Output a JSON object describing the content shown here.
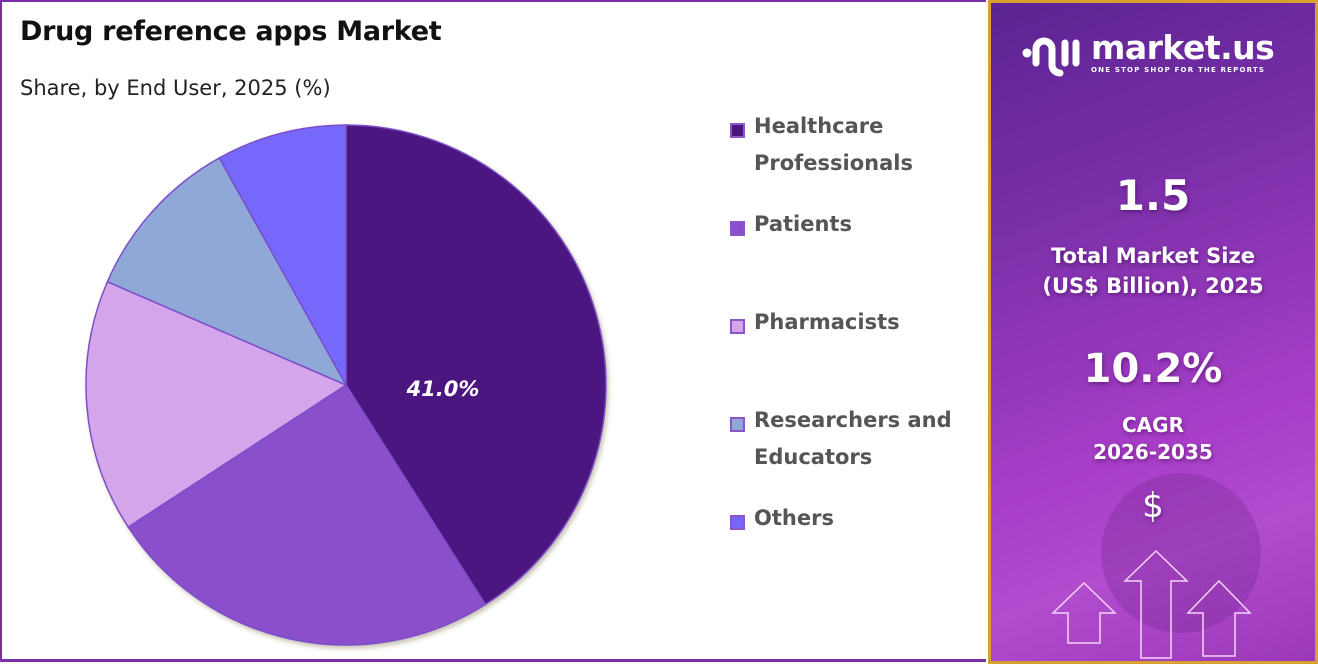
{
  "header": {
    "title": "Drug reference apps Market",
    "subtitle": "Share, by End User, 2025 (%)"
  },
  "chart_data": {
    "type": "pie",
    "title": "Drug reference apps Market",
    "subtitle": "Share, by End User, 2025 (%)",
    "categories": [
      "Healthcare Professionals",
      "Patients",
      "Pharmacists",
      "Researchers and Educators",
      "Others"
    ],
    "values": [
      41.0,
      24.8,
      15.7,
      10.4,
      8.1
    ],
    "colors": [
      "#4b1580",
      "#8b4fcc",
      "#d4a5ea",
      "#8fa8d8",
      "#7468fb"
    ],
    "data_labels": [
      "41.0%",
      "",
      "",
      "",
      ""
    ],
    "legend_position": "right"
  },
  "legend": {
    "items": [
      {
        "line1": "Healthcare",
        "line2": "Professionals",
        "color": "#4b1580"
      },
      {
        "line1": "Patients",
        "line2": "",
        "color": "#8b4fcc"
      },
      {
        "line1": "Pharmacists",
        "line2": "",
        "color": "#d4a5ea"
      },
      {
        "line1": "Researchers and",
        "line2": "Educators",
        "color": "#8fa8d8"
      },
      {
        "line1": "Others",
        "line2": "",
        "color": "#7468fb"
      }
    ]
  },
  "slice_label": "41.0%",
  "sidebar": {
    "brand": "market.us",
    "tagline": "ONE STOP SHOP FOR THE REPORTS",
    "market_size_value": "1.5",
    "market_size_label_1": "Total Market Size",
    "market_size_label_2": "(US$ Billion), 2025",
    "cagr_value": "10.2%",
    "cagr_label_1": "CAGR",
    "cagr_label_2": "2026-2035",
    "currency_symbol": "$"
  }
}
